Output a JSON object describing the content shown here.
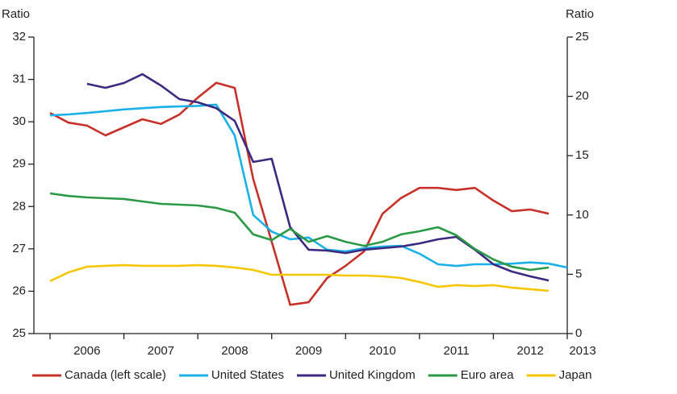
{
  "chart_data": {
    "type": "line",
    "y_label": "Ratio",
    "y2_label": "Ratio",
    "xlim": [
      2006,
      2013
    ],
    "xticks": [
      2006,
      2007,
      2008,
      2009,
      2010,
      2011,
      2012,
      2013
    ],
    "ylim": [
      25,
      32
    ],
    "yticks": [
      25,
      26,
      27,
      28,
      29,
      30,
      31,
      32
    ],
    "y2lim": [
      0,
      25
    ],
    "y2ticks": [
      0,
      5,
      10,
      15,
      20,
      25
    ],
    "series": [
      {
        "name": "Canada (left scale)",
        "color": "#c8312a",
        "x": [
          2006,
          2006.25,
          2006.5,
          2006.75,
          2007,
          2007.25,
          2007.5,
          2007.75,
          2008,
          2008.25,
          2008.5,
          2008.75,
          2009,
          2009.25,
          2009.5,
          2009.75,
          2010,
          2010.25,
          2010.5,
          2010.75,
          2011,
          2011.25,
          2011.5,
          2011.75,
          2012,
          2012.25,
          2012.5,
          2012.75
        ],
        "values": [
          30.21,
          29.98,
          29.91,
          29.68,
          29.87,
          30.06,
          29.95,
          30.17,
          30.57,
          30.92,
          30.8,
          28.65,
          27.17,
          25.68,
          25.74,
          26.31,
          26.6,
          26.94,
          27.83,
          28.2,
          28.44,
          28.44,
          28.39,
          28.44,
          28.14,
          27.89,
          27.93,
          27.83
        ]
      },
      {
        "name": "United States",
        "color": "#1ab0e8",
        "axis": "y2",
        "x": [
          2006,
          2006.25,
          2006.5,
          2006.75,
          2007,
          2007.25,
          2007.5,
          2007.75,
          2008,
          2008.25,
          2008.5,
          2008.75,
          2009,
          2009.25,
          2009.5,
          2009.75,
          2010,
          2010.25,
          2010.5,
          2010.75,
          2011,
          2011.25,
          2011.5,
          2011.75,
          2012,
          2012.25,
          2012.5,
          2012.75,
          2013
        ],
        "values": [
          18.4,
          18.48,
          18.6,
          18.75,
          18.9,
          19.0,
          19.1,
          19.15,
          19.2,
          19.3,
          16.7,
          10.0,
          8.6,
          7.95,
          8.1,
          7.07,
          6.93,
          7.2,
          7.34,
          7.4,
          6.73,
          5.84,
          5.7,
          5.84,
          5.84,
          5.9,
          6.0,
          5.9,
          5.57
        ]
      },
      {
        "name": "United Kingdom",
        "color": "#3b2a7f",
        "axis": "y2",
        "x": [
          2006.5,
          2006.75,
          2007,
          2007.25,
          2007.5,
          2007.75,
          2008,
          2008.25,
          2008.5,
          2008.75,
          2009,
          2009.25,
          2009.5,
          2009.75,
          2010,
          2010.25,
          2010.5,
          2010.75,
          2011,
          2011.25,
          2011.5,
          2011.75,
          2012,
          2012.25,
          2012.5,
          2012.75
        ],
        "values": [
          21.06,
          20.72,
          21.13,
          21.87,
          20.92,
          19.77,
          19.5,
          19.0,
          17.93,
          14.47,
          14.74,
          8.97,
          7.07,
          7.0,
          6.79,
          7.07,
          7.2,
          7.34,
          7.6,
          7.95,
          8.15,
          7.07,
          5.84,
          5.23,
          4.82,
          4.48
        ]
      },
      {
        "name": "Euro area",
        "color": "#2a9a46",
        "axis": "y2",
        "x": [
          2006,
          2006.25,
          2006.5,
          2006.75,
          2007,
          2007.25,
          2007.5,
          2007.75,
          2008,
          2008.25,
          2008.5,
          2008.75,
          2009,
          2009.25,
          2009.5,
          2009.75,
          2010,
          2010.25,
          2010.5,
          2010.75,
          2011,
          2011.25,
          2011.5,
          2011.75,
          2012,
          2012.25,
          2012.5,
          2012.75
        ],
        "values": [
          11.82,
          11.6,
          11.48,
          11.41,
          11.35,
          11.14,
          10.94,
          10.87,
          10.8,
          10.6,
          10.19,
          8.36,
          7.88,
          8.83,
          7.74,
          8.22,
          7.74,
          7.4,
          7.74,
          8.36,
          8.63,
          8.97,
          8.29,
          7.13,
          6.25,
          5.64,
          5.37,
          5.57
        ]
      },
      {
        "name": "Japan",
        "color": "#f6c700",
        "axis": "y2",
        "x": [
          2006,
          2006.25,
          2006.5,
          2006.75,
          2007,
          2007.25,
          2007.5,
          2007.75,
          2008,
          2008.25,
          2008.5,
          2008.75,
          2009,
          2009.25,
          2009.5,
          2009.75,
          2010,
          2010.25,
          2010.5,
          2010.75,
          2011,
          2011.25,
          2011.5,
          2011.75,
          2012,
          2012.25,
          2012.5,
          2012.75
        ],
        "values": [
          4.42,
          5.16,
          5.64,
          5.71,
          5.77,
          5.71,
          5.71,
          5.71,
          5.77,
          5.71,
          5.57,
          5.37,
          4.96,
          4.96,
          4.96,
          4.96,
          4.89,
          4.89,
          4.82,
          4.69,
          4.35,
          3.94,
          4.08,
          4.01,
          4.08,
          3.87,
          3.74,
          3.6
        ]
      }
    ]
  }
}
